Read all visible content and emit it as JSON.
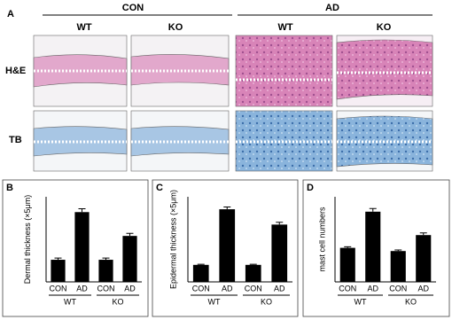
{
  "figure": {
    "panel_a": {
      "label": "A",
      "groups": [
        "CON",
        "AD"
      ],
      "columns": [
        "WT",
        "KO",
        "WT",
        "KO"
      ],
      "rows": [
        "H&E",
        "TB"
      ]
    }
  },
  "chart_data": [
    {
      "type": "bar",
      "panel_label": "B",
      "ylabel": "Dermal thickness (×5μm)",
      "categories": [
        "CON",
        "AD",
        "CON",
        "AD"
      ],
      "groups": [
        "WT",
        "KO"
      ],
      "values": [
        13,
        41,
        13,
        27
      ],
      "errors": [
        1,
        2,
        1,
        1.5
      ],
      "color": "#000000",
      "ylim": [
        0,
        50
      ]
    },
    {
      "type": "bar",
      "panel_label": "C",
      "ylabel": "Epidermal thickness (×5μm)",
      "categories": [
        "CON",
        "AD",
        "CON",
        "AD"
      ],
      "groups": [
        "WT",
        "KO"
      ],
      "values": [
        3,
        12.8,
        3,
        10.1
      ],
      "errors": [
        0.1,
        0.4,
        0.1,
        0.4
      ],
      "color": "#000000",
      "ylim": [
        0,
        15
      ]
    },
    {
      "type": "bar",
      "panel_label": "D",
      "ylabel": "mast cell numbers",
      "categories": [
        "CON",
        "AD",
        "CON",
        "AD"
      ],
      "groups": [
        "WT",
        "KO"
      ],
      "values": [
        32,
        66,
        29,
        44
      ],
      "errors": [
        1,
        3,
        1,
        2
      ],
      "color": "#000000",
      "ylim": [
        0,
        80
      ]
    }
  ]
}
